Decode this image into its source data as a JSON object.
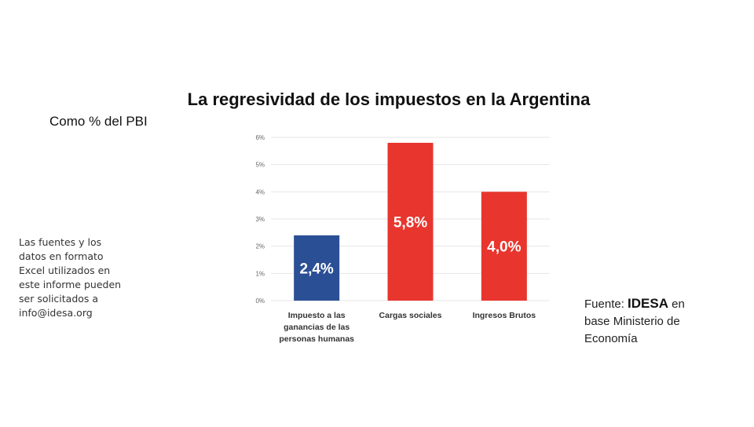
{
  "chart_data": {
    "type": "bar",
    "title": "La regresividad de los impuestos en la Argentina",
    "subtitle": "Como % del PBI",
    "categories": [
      [
        "Impuesto a las",
        "ganancias de las",
        "personas humanas"
      ],
      [
        "Cargas sociales"
      ],
      [
        "Ingresos Brutos"
      ]
    ],
    "values": [
      2.4,
      5.8,
      4.0
    ],
    "data_labels": [
      "2,4%",
      "5,8%",
      "4,0%"
    ],
    "colors": [
      "#2a4f94",
      "#e8352e",
      "#e8352e"
    ],
    "ylim": [
      0,
      6
    ],
    "yticks": [
      "0%",
      "1%",
      "2%",
      "3%",
      "4%",
      "5%",
      "6%"
    ],
    "grid": true,
    "xlabel": "",
    "ylabel": ""
  },
  "note_lines": [
    "Las fuentes y los",
    "datos en formato",
    "Excel utilizados en",
    "este informe pueden",
    "ser solicitados a",
    "info@idesa.org"
  ],
  "source": {
    "prefix": "Fuente: ",
    "brand": "IDESA",
    "suffix": " en",
    "line2": "base Ministerio de",
    "line3": "Economía"
  }
}
